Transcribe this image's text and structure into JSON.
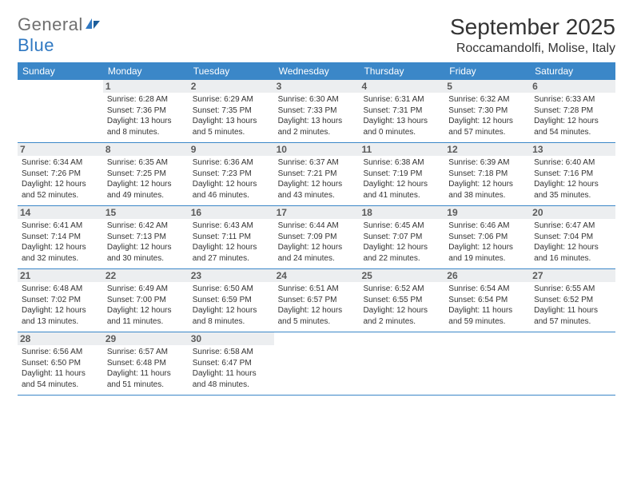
{
  "logo": {
    "general": "General",
    "blue": "Blue"
  },
  "header": {
    "month_title": "September 2025",
    "location": "Roccamandolfi, Molise, Italy"
  },
  "colors": {
    "header_bar": "#3b87c8",
    "daynum_bg": "#eceef0",
    "text": "#333333",
    "logo_gray": "#6f6f6f",
    "logo_blue": "#2f78c2"
  },
  "weekdays": [
    "Sunday",
    "Monday",
    "Tuesday",
    "Wednesday",
    "Thursday",
    "Friday",
    "Saturday"
  ],
  "weeks": [
    [
      null,
      {
        "n": "1",
        "sr": "Sunrise: 6:28 AM",
        "ss": "Sunset: 7:36 PM",
        "dl": "Daylight: 13 hours and 8 minutes."
      },
      {
        "n": "2",
        "sr": "Sunrise: 6:29 AM",
        "ss": "Sunset: 7:35 PM",
        "dl": "Daylight: 13 hours and 5 minutes."
      },
      {
        "n": "3",
        "sr": "Sunrise: 6:30 AM",
        "ss": "Sunset: 7:33 PM",
        "dl": "Daylight: 13 hours and 2 minutes."
      },
      {
        "n": "4",
        "sr": "Sunrise: 6:31 AM",
        "ss": "Sunset: 7:31 PM",
        "dl": "Daylight: 13 hours and 0 minutes."
      },
      {
        "n": "5",
        "sr": "Sunrise: 6:32 AM",
        "ss": "Sunset: 7:30 PM",
        "dl": "Daylight: 12 hours and 57 minutes."
      },
      {
        "n": "6",
        "sr": "Sunrise: 6:33 AM",
        "ss": "Sunset: 7:28 PM",
        "dl": "Daylight: 12 hours and 54 minutes."
      }
    ],
    [
      {
        "n": "7",
        "sr": "Sunrise: 6:34 AM",
        "ss": "Sunset: 7:26 PM",
        "dl": "Daylight: 12 hours and 52 minutes."
      },
      {
        "n": "8",
        "sr": "Sunrise: 6:35 AM",
        "ss": "Sunset: 7:25 PM",
        "dl": "Daylight: 12 hours and 49 minutes."
      },
      {
        "n": "9",
        "sr": "Sunrise: 6:36 AM",
        "ss": "Sunset: 7:23 PM",
        "dl": "Daylight: 12 hours and 46 minutes."
      },
      {
        "n": "10",
        "sr": "Sunrise: 6:37 AM",
        "ss": "Sunset: 7:21 PM",
        "dl": "Daylight: 12 hours and 43 minutes."
      },
      {
        "n": "11",
        "sr": "Sunrise: 6:38 AM",
        "ss": "Sunset: 7:19 PM",
        "dl": "Daylight: 12 hours and 41 minutes."
      },
      {
        "n": "12",
        "sr": "Sunrise: 6:39 AM",
        "ss": "Sunset: 7:18 PM",
        "dl": "Daylight: 12 hours and 38 minutes."
      },
      {
        "n": "13",
        "sr": "Sunrise: 6:40 AM",
        "ss": "Sunset: 7:16 PM",
        "dl": "Daylight: 12 hours and 35 minutes."
      }
    ],
    [
      {
        "n": "14",
        "sr": "Sunrise: 6:41 AM",
        "ss": "Sunset: 7:14 PM",
        "dl": "Daylight: 12 hours and 32 minutes."
      },
      {
        "n": "15",
        "sr": "Sunrise: 6:42 AM",
        "ss": "Sunset: 7:13 PM",
        "dl": "Daylight: 12 hours and 30 minutes."
      },
      {
        "n": "16",
        "sr": "Sunrise: 6:43 AM",
        "ss": "Sunset: 7:11 PM",
        "dl": "Daylight: 12 hours and 27 minutes."
      },
      {
        "n": "17",
        "sr": "Sunrise: 6:44 AM",
        "ss": "Sunset: 7:09 PM",
        "dl": "Daylight: 12 hours and 24 minutes."
      },
      {
        "n": "18",
        "sr": "Sunrise: 6:45 AM",
        "ss": "Sunset: 7:07 PM",
        "dl": "Daylight: 12 hours and 22 minutes."
      },
      {
        "n": "19",
        "sr": "Sunrise: 6:46 AM",
        "ss": "Sunset: 7:06 PM",
        "dl": "Daylight: 12 hours and 19 minutes."
      },
      {
        "n": "20",
        "sr": "Sunrise: 6:47 AM",
        "ss": "Sunset: 7:04 PM",
        "dl": "Daylight: 12 hours and 16 minutes."
      }
    ],
    [
      {
        "n": "21",
        "sr": "Sunrise: 6:48 AM",
        "ss": "Sunset: 7:02 PM",
        "dl": "Daylight: 12 hours and 13 minutes."
      },
      {
        "n": "22",
        "sr": "Sunrise: 6:49 AM",
        "ss": "Sunset: 7:00 PM",
        "dl": "Daylight: 12 hours and 11 minutes."
      },
      {
        "n": "23",
        "sr": "Sunrise: 6:50 AM",
        "ss": "Sunset: 6:59 PM",
        "dl": "Daylight: 12 hours and 8 minutes."
      },
      {
        "n": "24",
        "sr": "Sunrise: 6:51 AM",
        "ss": "Sunset: 6:57 PM",
        "dl": "Daylight: 12 hours and 5 minutes."
      },
      {
        "n": "25",
        "sr": "Sunrise: 6:52 AM",
        "ss": "Sunset: 6:55 PM",
        "dl": "Daylight: 12 hours and 2 minutes."
      },
      {
        "n": "26",
        "sr": "Sunrise: 6:54 AM",
        "ss": "Sunset: 6:54 PM",
        "dl": "Daylight: 11 hours and 59 minutes."
      },
      {
        "n": "27",
        "sr": "Sunrise: 6:55 AM",
        "ss": "Sunset: 6:52 PM",
        "dl": "Daylight: 11 hours and 57 minutes."
      }
    ],
    [
      {
        "n": "28",
        "sr": "Sunrise: 6:56 AM",
        "ss": "Sunset: 6:50 PM",
        "dl": "Daylight: 11 hours and 54 minutes."
      },
      {
        "n": "29",
        "sr": "Sunrise: 6:57 AM",
        "ss": "Sunset: 6:48 PM",
        "dl": "Daylight: 11 hours and 51 minutes."
      },
      {
        "n": "30",
        "sr": "Sunrise: 6:58 AM",
        "ss": "Sunset: 6:47 PM",
        "dl": "Daylight: 11 hours and 48 minutes."
      },
      null,
      null,
      null,
      null
    ]
  ]
}
